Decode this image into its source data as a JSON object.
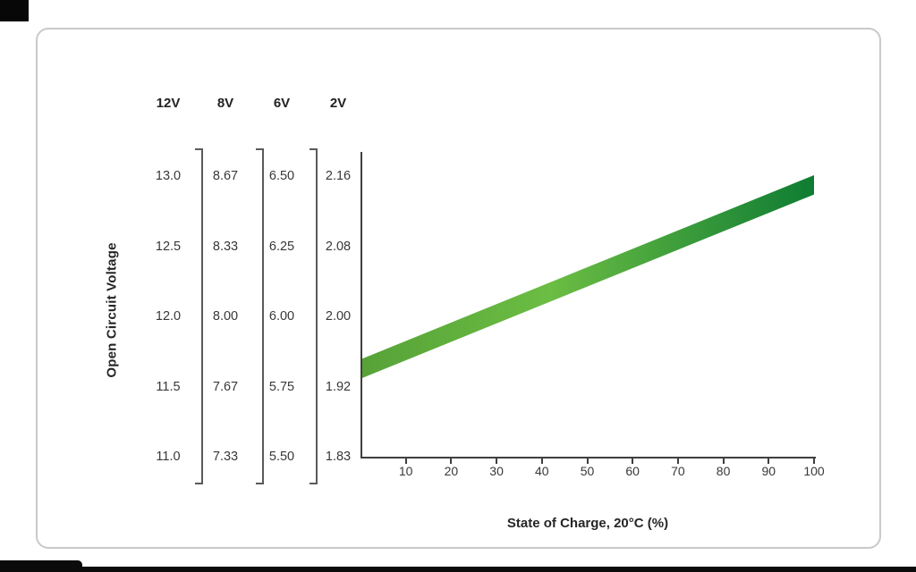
{
  "chart_data": {
    "type": "line",
    "title": "",
    "ylabel": "Open Circuit Voltage",
    "xlabel": "State of Charge, 20°C (%)",
    "grid": false,
    "legend": false,
    "x_axis": {
      "range": [
        0,
        100
      ],
      "ticks": [
        10,
        20,
        30,
        40,
        50,
        60,
        70,
        80,
        90,
        100
      ]
    },
    "voltage_scales": [
      {
        "label": "12V",
        "tick_labels": [
          "13.0",
          "12.5",
          "12.0",
          "11.5",
          "11.0"
        ]
      },
      {
        "label": "8V",
        "tick_labels": [
          "8.67",
          "8.33",
          "8.00",
          "7.67",
          "7.33"
        ]
      },
      {
        "label": "6V",
        "tick_labels": [
          "6.50",
          "6.25",
          "6.00",
          "5.75",
          "5.50"
        ]
      },
      {
        "label": "2V",
        "tick_labels": [
          "2.16",
          "2.08",
          "2.00",
          "1.92",
          "1.83"
        ]
      }
    ],
    "series": [
      {
        "name": "open-circuit-voltage-vs-state-of-charge",
        "scale": "2V",
        "style": "gradient-band",
        "x": [
          0,
          100
        ],
        "y": [
          1.94,
          2.15
        ],
        "band_half_width_v": 0.011,
        "colors": [
          "#57a238",
          "#6bbd43",
          "#0e7c33"
        ]
      }
    ]
  }
}
